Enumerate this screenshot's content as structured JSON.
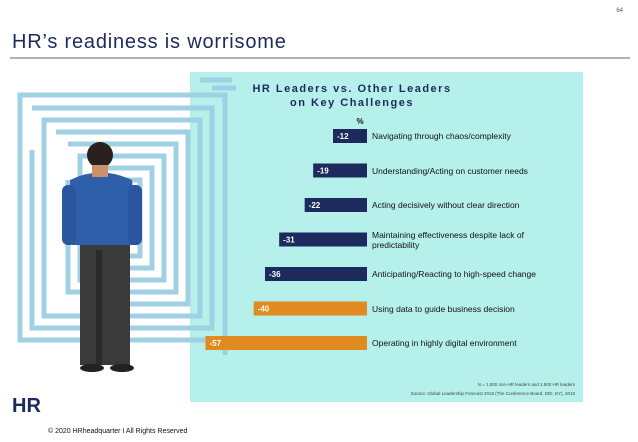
{
  "page_number": "64",
  "slide_title": "HR’s readiness is worrisome",
  "footer": "© 2020 HRheadquarter I All Rights Reserved",
  "logo": "HR",
  "chart_data": {
    "type": "bar",
    "orientation": "horizontal",
    "title": [
      "HR Leaders vs. Other Leaders",
      "on Key Challenges"
    ],
    "unit_label": "%",
    "categories": [
      "Navigating through chaos/complexity",
      "Understanding/Acting on customer needs",
      "Acting decisively without clear direction",
      "Maintaining effectiveness despite lack of predictability",
      "Anticipating/Reacting to high-speed change",
      "Using data to guide business decision",
      "Operating in highly digital environment"
    ],
    "values": [
      -12,
      -19,
      -22,
      -31,
      -36,
      -40,
      -57
    ],
    "colors": [
      "#1c2a5e",
      "#1c2a5e",
      "#1c2a5e",
      "#1c2a5e",
      "#1c2a5e",
      "#e08a1f",
      "#e08a1f"
    ],
    "xlim": [
      -60,
      0
    ],
    "notes": [
      "N = 1,000 non-HR leaders and 2,500 HR leaders",
      "Source: Global Leadership Forecast 2018 (The Conference Board, DDI, EY), 2018"
    ]
  }
}
